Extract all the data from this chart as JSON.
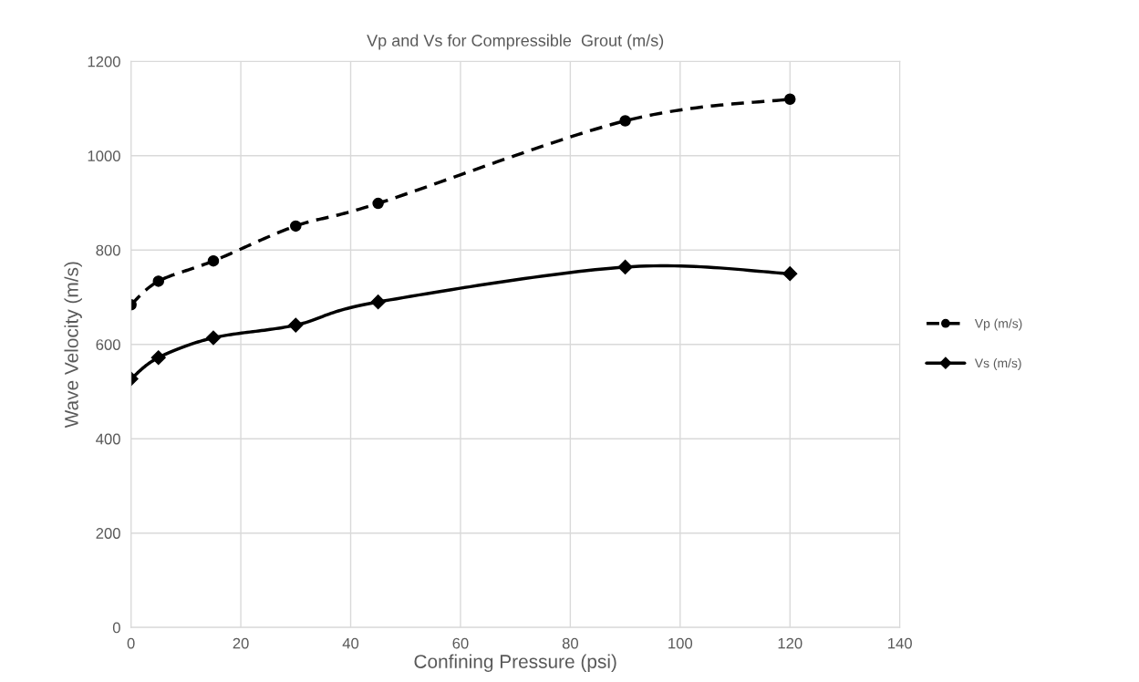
{
  "chart_data": {
    "type": "line",
    "title": "Vp and Vs for Compressible  Grout (m/s)",
    "xlabel": "Confining Pressure (psi)",
    "ylabel": "Wave Velocity (m/s)",
    "x": [
      0,
      5,
      15,
      30,
      45,
      90,
      120
    ],
    "series": [
      {
        "name": "Vp (m/s)",
        "color": "#000000",
        "values": [
          684,
          734,
          777,
          851,
          899,
          1074,
          1120
        ],
        "marker": "circle",
        "line_style": "dashed"
      },
      {
        "name": "Vs (m/s)",
        "color": "#000000",
        "values": [
          527,
          572,
          614,
          641,
          690,
          764,
          750
        ],
        "marker": "diamond",
        "line_style": "solid"
      }
    ],
    "xlim": [
      0,
      140
    ],
    "xticks": [
      0,
      20,
      40,
      60,
      80,
      100,
      120,
      140
    ],
    "ylim": [
      0,
      1200
    ],
    "yticks": [
      0,
      200,
      400,
      600,
      800,
      1000,
      1200
    ],
    "grid": true,
    "legend": "right"
  }
}
